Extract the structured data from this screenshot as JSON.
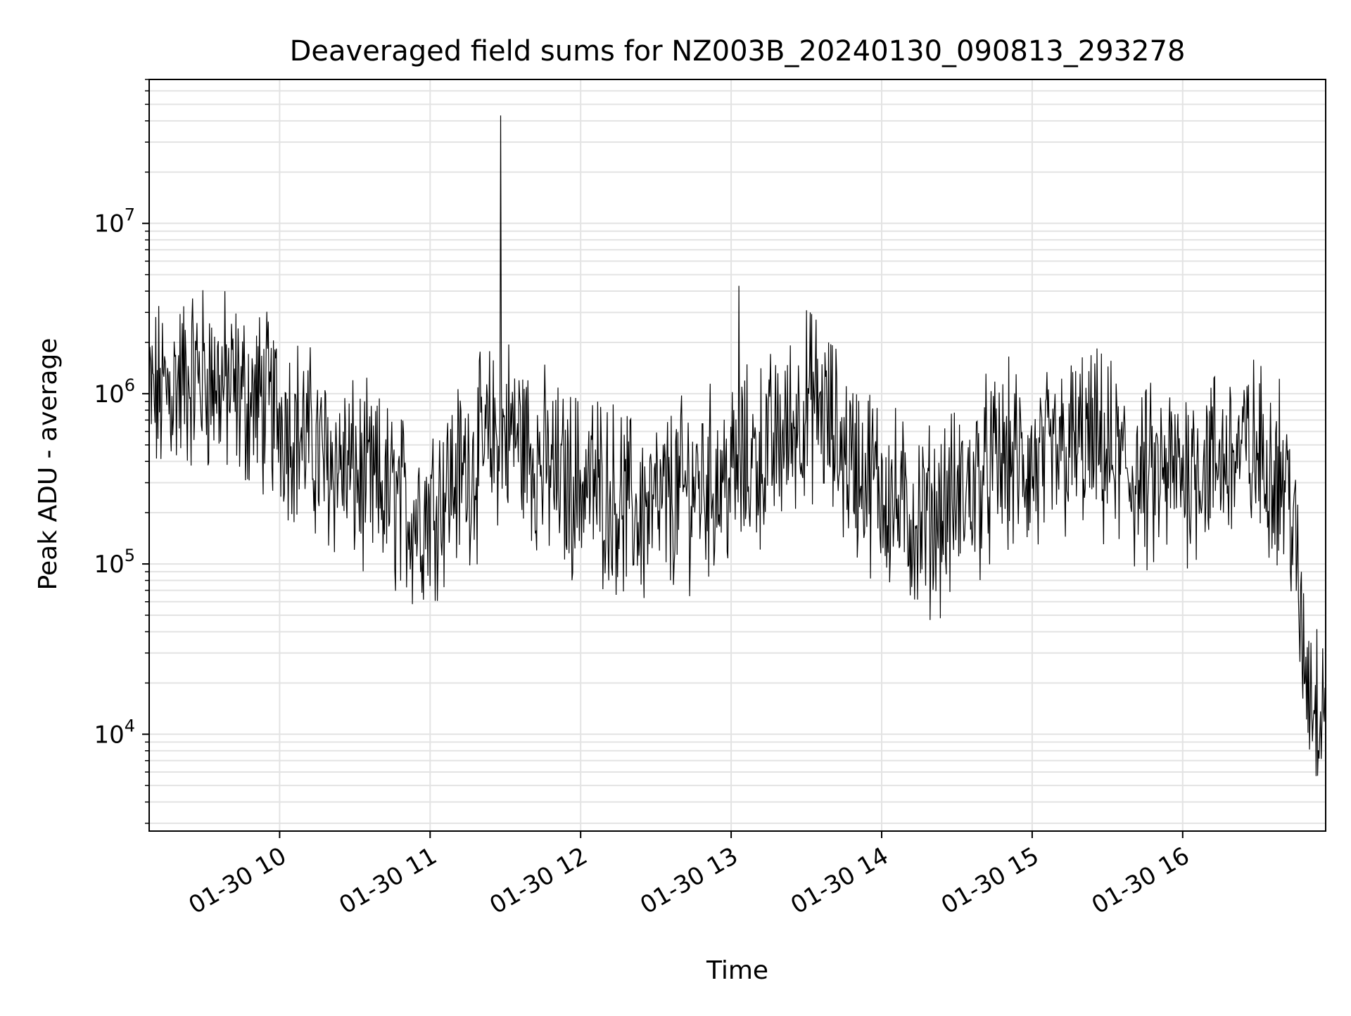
{
  "chart_data": {
    "type": "line",
    "title": "Deaveraged field sums for NZ003B_20240130_090813_293278",
    "xlabel": "Time",
    "ylabel": "Peak ADU - average",
    "yscale": "log",
    "ylim": [
      2700,
      70000000
    ],
    "xlim": [
      "2024-01-30 09:08",
      "2024-01-30 16:57"
    ],
    "grid": true,
    "legend": "none",
    "line_color": "#000000",
    "grid_color": "#e3e3e3",
    "x_ticks": [
      {
        "value": "2024-01-30 10:00",
        "label": "01-30 10"
      },
      {
        "value": "2024-01-30 11:00",
        "label": "01-30 11"
      },
      {
        "value": "2024-01-30 12:00",
        "label": "01-30 12"
      },
      {
        "value": "2024-01-30 13:00",
        "label": "01-30 13"
      },
      {
        "value": "2024-01-30 14:00",
        "label": "01-30 14"
      },
      {
        "value": "2024-01-30 15:00",
        "label": "01-30 15"
      },
      {
        "value": "2024-01-30 16:00",
        "label": "01-30 16"
      }
    ],
    "y_ticks": [
      {
        "value": 10000,
        "base": "10",
        "exp": "4"
      },
      {
        "value": 100000,
        "base": "10",
        "exp": "5"
      },
      {
        "value": 1000000,
        "base": "10",
        "exp": "6"
      },
      {
        "value": 10000000,
        "base": "10",
        "exp": "7"
      }
    ],
    "series": [
      {
        "x": [
          "2024-01-30 09:08",
          "2024-01-30 09:13",
          "2024-01-30 09:18",
          "2024-01-30 09:23",
          "2024-01-30 09:28",
          "2024-01-30 09:33",
          "2024-01-30 09:38",
          "2024-01-30 09:43",
          "2024-01-30 09:48",
          "2024-01-30 09:53",
          "2024-01-30 09:58",
          "2024-01-30 10:03",
          "2024-01-30 10:08",
          "2024-01-30 10:13",
          "2024-01-30 10:18",
          "2024-01-30 10:23",
          "2024-01-30 10:28",
          "2024-01-30 10:33",
          "2024-01-30 10:38",
          "2024-01-30 10:43",
          "2024-01-30 10:48",
          "2024-01-30 10:53",
          "2024-01-30 10:58",
          "2024-01-30 11:03",
          "2024-01-30 11:08",
          "2024-01-30 11:13",
          "2024-01-30 11:18",
          "2024-01-30 11:23",
          "2024-01-30 11:28",
          "2024-01-30 11:33",
          "2024-01-30 11:38",
          "2024-01-30 11:43",
          "2024-01-30 11:48",
          "2024-01-30 11:53",
          "2024-01-30 11:58",
          "2024-01-30 12:03",
          "2024-01-30 12:08",
          "2024-01-30 12:13",
          "2024-01-30 12:18",
          "2024-01-30 12:23",
          "2024-01-30 12:28",
          "2024-01-30 12:33",
          "2024-01-30 12:38",
          "2024-01-30 12:43",
          "2024-01-30 12:48",
          "2024-01-30 12:53",
          "2024-01-30 12:58",
          "2024-01-30 13:03",
          "2024-01-30 13:08",
          "2024-01-30 13:13",
          "2024-01-30 13:18",
          "2024-01-30 13:23",
          "2024-01-30 13:28",
          "2024-01-30 13:33",
          "2024-01-30 13:38",
          "2024-01-30 13:43",
          "2024-01-30 13:48",
          "2024-01-30 13:53",
          "2024-01-30 13:58",
          "2024-01-30 14:03",
          "2024-01-30 14:08",
          "2024-01-30 14:13",
          "2024-01-30 14:18",
          "2024-01-30 14:23",
          "2024-01-30 14:28",
          "2024-01-30 14:33",
          "2024-01-30 14:38",
          "2024-01-30 14:43",
          "2024-01-30 14:48",
          "2024-01-30 14:53",
          "2024-01-30 14:58",
          "2024-01-30 15:03",
          "2024-01-30 15:08",
          "2024-01-30 15:13",
          "2024-01-30 15:18",
          "2024-01-30 15:23",
          "2024-01-30 15:28",
          "2024-01-30 15:33",
          "2024-01-30 15:38",
          "2024-01-30 15:43",
          "2024-01-30 15:48",
          "2024-01-30 15:53",
          "2024-01-30 15:58",
          "2024-01-30 16:03",
          "2024-01-30 16:08",
          "2024-01-30 16:13",
          "2024-01-30 16:18",
          "2024-01-30 16:23",
          "2024-01-30 16:28",
          "2024-01-30 16:33",
          "2024-01-30 16:38",
          "2024-01-30 16:43",
          "2024-01-30 16:48",
          "2024-01-30 16:53",
          "2024-01-30 16:57"
        ],
        "y": [
          900000,
          1000000,
          1100000,
          1200000,
          1300000,
          1200000,
          1100000,
          1000000,
          900000,
          900000,
          800000,
          700000,
          600000,
          500000,
          400000,
          400000,
          350000,
          300000,
          280000,
          260000,
          220000,
          200000,
          200000,
          250000,
          300000,
          350000,
          400000,
          500000,
          600000,
          600000,
          500000,
          400000,
          350000,
          300000,
          300000,
          300000,
          280000,
          250000,
          220000,
          200000,
          200000,
          220000,
          250000,
          280000,
          300000,
          300000,
          320000,
          350000,
          400000,
          450000,
          500000,
          600000,
          800000,
          900000,
          700000,
          500000,
          400000,
          350000,
          300000,
          250000,
          200000,
          180000,
          180000,
          200000,
          220000,
          250000,
          300000,
          350000,
          400000,
          400000,
          350000,
          350000,
          400000,
          450000,
          500000,
          500000,
          450000,
          400000,
          350000,
          300000,
          300000,
          320000,
          350000,
          380000,
          400000,
          400000,
          420000,
          450000,
          450000,
          400000,
          380000,
          250000,
          30000,
          15000,
          20000
        ]
      }
    ],
    "annotations": [
      {
        "type": "spike",
        "x": "2024-01-30 11:28",
        "y": 43000000
      },
      {
        "type": "spike",
        "x": "2024-01-30 13:03",
        "y": 4300000
      }
    ],
    "y_min_observed": 4200
  }
}
